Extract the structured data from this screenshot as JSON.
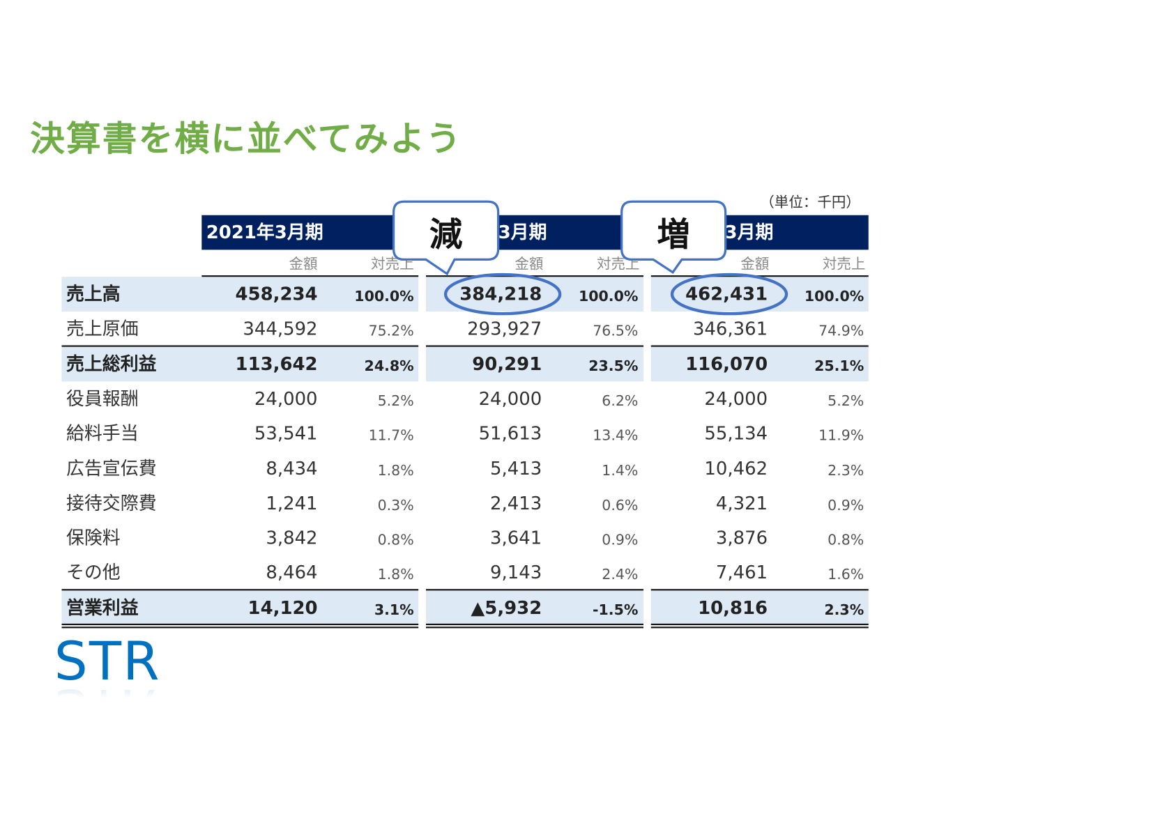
{
  "title": "決算書を横に並べてみよう",
  "unit_note": "（単位：千円）",
  "periods": [
    {
      "header": "2021年3月期"
    },
    {
      "header": "3月期"
    },
    {
      "header": "3月期"
    }
  ],
  "subheaders": {
    "amount": "金額",
    "ratio": "対売上"
  },
  "rows": [
    {
      "label": "売上高",
      "bold": true,
      "values": [
        [
          "458,234",
          "100.0%"
        ],
        [
          "384,218",
          "100.0%"
        ],
        [
          "462,431",
          "100.0%"
        ]
      ]
    },
    {
      "label": "売上原価",
      "bold": false,
      "values": [
        [
          "344,592",
          "75.2%"
        ],
        [
          "293,927",
          "76.5%"
        ],
        [
          "346,361",
          "74.9%"
        ]
      ]
    },
    {
      "label": "売上総利益",
      "bold": true,
      "values": [
        [
          "113,642",
          "24.8%"
        ],
        [
          "90,291",
          "23.5%"
        ],
        [
          "116,070",
          "25.1%"
        ]
      ]
    },
    {
      "label": "役員報酬",
      "bold": false,
      "values": [
        [
          "24,000",
          "5.2%"
        ],
        [
          "24,000",
          "6.2%"
        ],
        [
          "24,000",
          "5.2%"
        ]
      ]
    },
    {
      "label": "給料手当",
      "bold": false,
      "values": [
        [
          "53,541",
          "11.7%"
        ],
        [
          "51,613",
          "13.4%"
        ],
        [
          "55,134",
          "11.9%"
        ]
      ]
    },
    {
      "label": "広告宣伝費",
      "bold": false,
      "values": [
        [
          "8,434",
          "1.8%"
        ],
        [
          "5,413",
          "1.4%"
        ],
        [
          "10,462",
          "2.3%"
        ]
      ]
    },
    {
      "label": "接待交際費",
      "bold": false,
      "values": [
        [
          "1,241",
          "0.3%"
        ],
        [
          "2,413",
          "0.6%"
        ],
        [
          "4,321",
          "0.9%"
        ]
      ]
    },
    {
      "label": "保険料",
      "bold": false,
      "values": [
        [
          "3,842",
          "0.8%"
        ],
        [
          "3,641",
          "0.9%"
        ],
        [
          "3,876",
          "0.8%"
        ]
      ]
    },
    {
      "label": "その他",
      "bold": false,
      "values": [
        [
          "8,464",
          "1.8%"
        ],
        [
          "9,143",
          "2.4%"
        ],
        [
          "7,461",
          "1.6%"
        ]
      ]
    },
    {
      "label": "営業利益",
      "bold": true,
      "values": [
        [
          "14,120",
          "3.1%"
        ],
        [
          "▲5,932",
          "-1.5%"
        ],
        [
          "10,816",
          "2.3%"
        ]
      ]
    }
  ],
  "callouts": [
    {
      "text": "減"
    },
    {
      "text": "増"
    }
  ],
  "logo": "STR",
  "colors": {
    "title": "#70ad47",
    "header_bg": "#002060",
    "highlight_bg": "#dde9f5",
    "callout_border": "#4472c4",
    "logo": "#0070c0"
  }
}
